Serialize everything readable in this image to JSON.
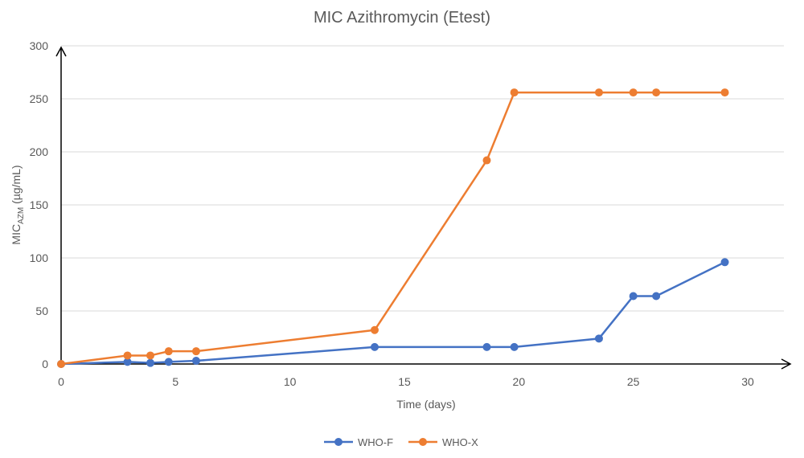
{
  "chart_data": {
    "type": "line",
    "title": "MIC Azithromycin (Etest)",
    "xlabel": "Time (days)",
    "ylabel_main": "MIC",
    "ylabel_sub": "AZM",
    "ylabel_unit": " (µg/mL)",
    "xlim": [
      0,
      31.5
    ],
    "ylim": [
      0,
      300
    ],
    "xticks": [
      0,
      5,
      10,
      15,
      20,
      25,
      30
    ],
    "yticks": [
      0,
      50,
      100,
      150,
      200,
      250,
      300
    ],
    "grid": "horizontal",
    "legend_position": "bottom",
    "series": [
      {
        "name": "WHO-F",
        "color": "#4472C4",
        "x": [
          0,
          2.9,
          3.9,
          4.7,
          5.9,
          13.7,
          18.6,
          19.8,
          23.5,
          25.0,
          26.0,
          29.0
        ],
        "y": [
          0,
          2,
          1,
          2,
          3,
          16,
          16,
          16,
          24,
          64,
          64,
          96
        ]
      },
      {
        "name": "WHO-X",
        "color": "#ED7D31",
        "x": [
          0,
          2.9,
          3.9,
          4.7,
          5.9,
          13.7,
          18.6,
          19.8,
          23.5,
          25.0,
          26.0,
          29.0
        ],
        "y": [
          0,
          8,
          8,
          12,
          12,
          32,
          192,
          256,
          256,
          256,
          256,
          256
        ]
      }
    ]
  },
  "colors": {
    "axis": "#000000",
    "grid": "#D9D9D9",
    "tick_text": "#595959",
    "title_text": "#595959"
  }
}
